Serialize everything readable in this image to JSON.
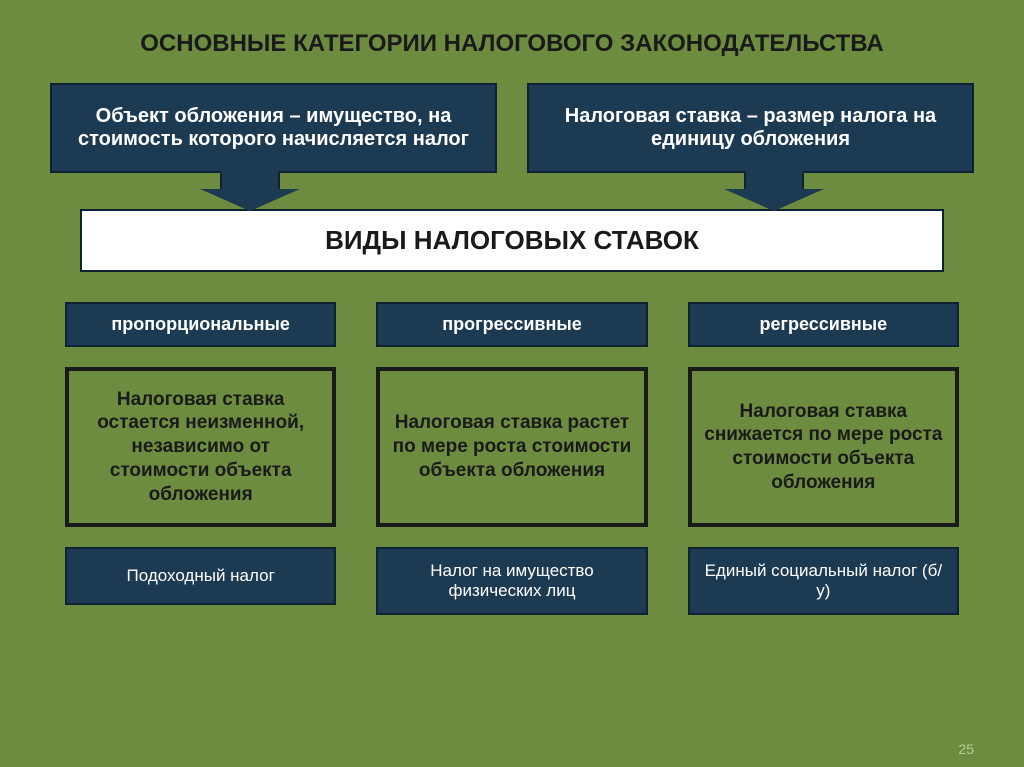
{
  "colors": {
    "background": "#6d8c3f",
    "box_fill": "#1d3a53",
    "box_border": "#0f2233",
    "box_text": "#ffffff",
    "title_text": "#1a1a1a",
    "dark_border": "#1a1a1a",
    "dark_text": "#1a1a1a",
    "page_num": "#b9cf8f"
  },
  "fonts": {
    "title_size": 24,
    "top_box_size": 20,
    "types_size": 26,
    "label_size": 18,
    "desc_size": 19,
    "example_size": 17
  },
  "title": "ОСНОВНЫЕ КАТЕГОРИИ НАЛОГОВОГО ЗАКОНОДАТЕЛЬСТВА",
  "top": {
    "left": "Объект обложения – имущество, на стоимость которого начисляется налог",
    "right": "Налоговая ставка – размер налога на единицу обложения"
  },
  "types_title": "ВИДЫ НАЛОГОВЫХ СТАВОК",
  "columns": [
    {
      "label": "пропорциональные",
      "desc": "Налоговая ставка остается неизменной, независимо от стоимости объекта обложения",
      "example": "Подоходный налог"
    },
    {
      "label": "прогрессивные",
      "desc": "Налоговая ставка растет по мере роста  стоимости объекта обложения",
      "example": "Налог на имущество физических лиц"
    },
    {
      "label": "регрессивные",
      "desc": "Налоговая ставка снижается по мере роста стоимости объекта обложения",
      "example": "Единый социальный налог (б/у)"
    }
  ],
  "page_number": "25"
}
